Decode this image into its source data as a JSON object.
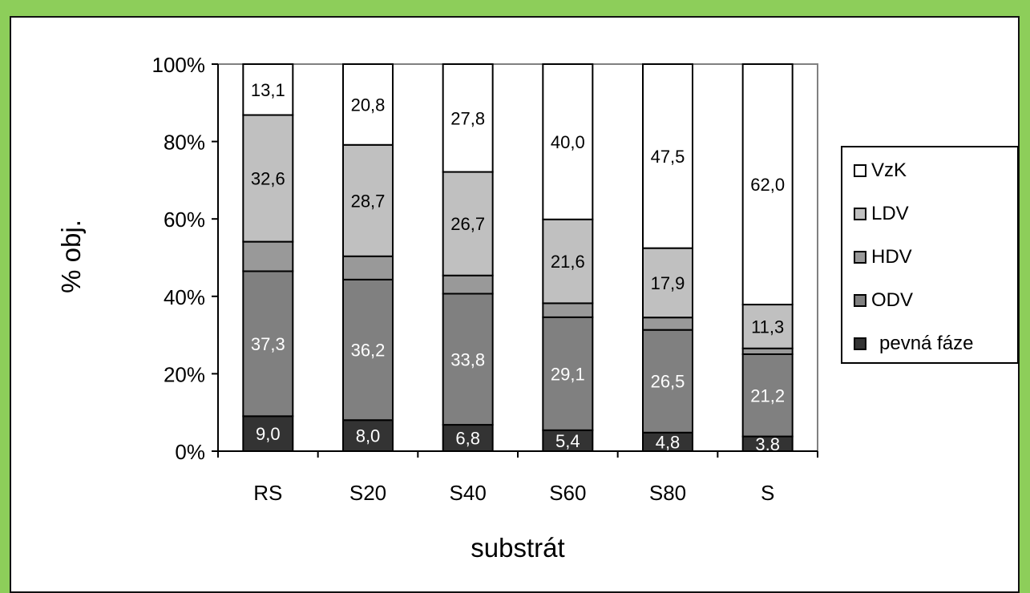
{
  "chart_data": {
    "type": "bar",
    "stacked": true,
    "percent_stacked": true,
    "xlabel": "substrát",
    "ylabel": "% obj.",
    "categories": [
      "RS",
      "S20",
      "S40",
      "S60",
      "S80",
      "S"
    ],
    "ylim": [
      0,
      100
    ],
    "yticks": [
      "0%",
      "20%",
      "40%",
      "60%",
      "80%",
      "100%"
    ],
    "legend_position": "right",
    "series": [
      {
        "name": "pevná fáze",
        "color": "#333333",
        "label_color": "#ffffff",
        "values": [
          9.0,
          8.0,
          6.8,
          5.4,
          4.8,
          3.8
        ],
        "labels": [
          "9,0",
          "8,0",
          "6,8",
          "5,4",
          "4,8",
          "3,8"
        ]
      },
      {
        "name": "ODV",
        "color": "#808080",
        "label_color": "#ffffff",
        "values": [
          37.3,
          36.2,
          33.8,
          29.1,
          26.5,
          21.2
        ],
        "labels": [
          "37,3",
          "36,2",
          "33,8",
          "29,1",
          "26,5",
          "21,2"
        ]
      },
      {
        "name": "HDV",
        "color": "#999999",
        "label_color": null,
        "values": [
          7.6,
          6.0,
          4.7,
          3.6,
          3.2,
          1.5
        ],
        "labels": null
      },
      {
        "name": "LDV",
        "color": "#c0c0c0",
        "label_color": "#000000",
        "values": [
          32.6,
          28.7,
          26.7,
          21.6,
          17.9,
          11.3
        ],
        "labels": [
          "32,6",
          "28,7",
          "26,7",
          "21,6",
          "17,9",
          "11,3"
        ]
      },
      {
        "name": "VzK",
        "color": "#ffffff",
        "label_color": "#000000",
        "values": [
          13.1,
          20.8,
          27.8,
          40.0,
          47.5,
          62.0
        ],
        "labels": [
          "13,1",
          "20,8",
          "27,8",
          "40,0",
          "47,5",
          "62,0"
        ]
      }
    ],
    "legend": [
      "VzK",
      "LDV",
      "HDV",
      "ODV",
      "pevná fáze"
    ]
  }
}
